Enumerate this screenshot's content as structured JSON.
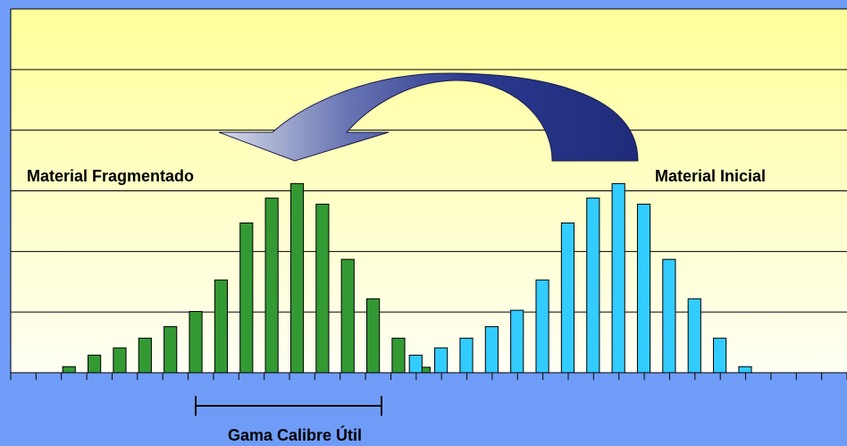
{
  "chart_data": {
    "type": "bar",
    "categories": [
      null,
      null,
      null,
      null,
      null,
      null,
      null,
      null,
      null,
      null,
      null,
      null,
      null,
      null,
      null,
      null,
      null,
      null,
      null,
      null,
      null,
      null,
      null,
      null,
      null,
      null,
      null,
      null,
      null,
      null,
      null,
      null,
      null
    ],
    "series": [
      {
        "color": "#339933",
        "values": [
          null,
          null,
          0.1,
          0.29,
          0.41,
          0.57,
          0.76,
          1.01,
          1.53,
          2.47,
          2.88,
          3.12,
          2.78,
          1.87,
          1.22,
          0.57,
          0.09,
          null,
          null,
          null,
          null,
          null,
          null,
          null,
          null,
          null,
          null,
          null,
          null,
          null,
          null,
          null,
          null
        ]
      },
      {
        "color": "#33ccff",
        "values": [
          null,
          null,
          null,
          null,
          null,
          null,
          null,
          null,
          null,
          null,
          null,
          null,
          null,
          null,
          null,
          0.29,
          0.41,
          0.57,
          0.76,
          1.03,
          1.53,
          2.47,
          2.88,
          3.12,
          2.78,
          1.87,
          1.22,
          0.57,
          0.1,
          null,
          null,
          null,
          null
        ]
      }
    ],
    "ylim": [
      0,
      6
    ],
    "yticks": [
      0,
      1,
      2,
      3,
      4,
      5,
      6
    ],
    "grid": true,
    "annotations": [
      "Material Fragmentado",
      "Material Inicial",
      "Gama Calibre Útil"
    ]
  }
}
